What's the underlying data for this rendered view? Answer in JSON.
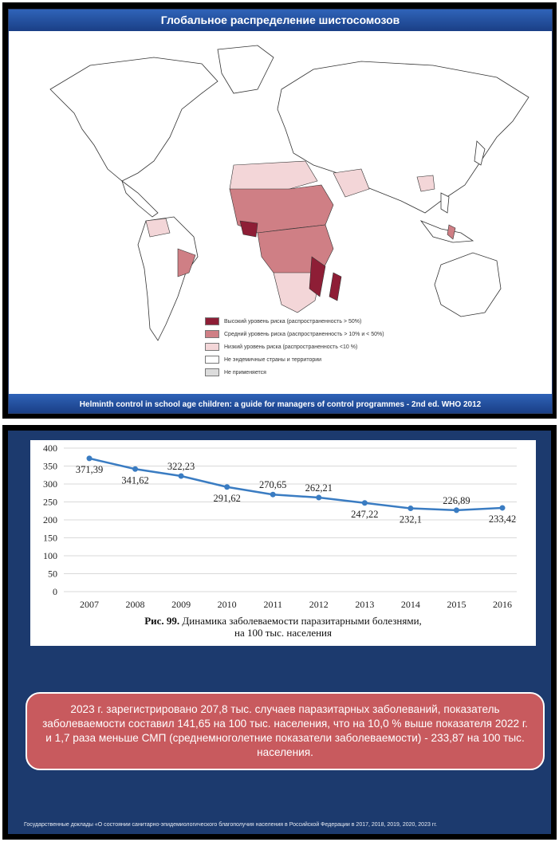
{
  "slide1": {
    "title": "Глобальное распределение шистосомозов",
    "footer": "Helminth control in school age children: a guide for managers of control programmes - 2nd ed. WHO 2012",
    "legend": [
      {
        "label": "Высокий уровень риска (распространенность > 50%)",
        "color": "#8e1e36"
      },
      {
        "label": "Средний уровень риска (распространенность > 10% и < 50%)",
        "color": "#cf7f85"
      },
      {
        "label": "Низкий уровень риска (распространенность <10 %)",
        "color": "#f3d6d8"
      },
      {
        "label": "Не эндемичные страны и территории",
        "color": "#ffffff"
      },
      {
        "label": "Не применяется",
        "color": "#dcdcdc"
      }
    ]
  },
  "chart_data": {
    "type": "line",
    "categories": [
      "2007",
      "2008",
      "2009",
      "2010",
      "2011",
      "2012",
      "2013",
      "2014",
      "2015",
      "2016"
    ],
    "values": [
      371.39,
      341.62,
      322.23,
      291.62,
      270.65,
      262.21,
      247.22,
      232.1,
      226.89,
      233.42
    ],
    "value_labels": [
      "371,39",
      "341,62",
      "322,23",
      "291,62",
      "270,65",
      "262,21",
      "247,22",
      "232,1",
      "226,89",
      "233,42"
    ],
    "y_ticks": [
      "0",
      "50",
      "100",
      "150",
      "200",
      "250",
      "300",
      "350",
      "400"
    ],
    "ylim": [
      0,
      400
    ],
    "grid": true,
    "series_color": "#3a7cc2",
    "caption_bold": "Рис. 99.",
    "caption_line1": " Динамика заболеваемости паразитарными болезнями,",
    "caption_line2": "на 100 тыс. населения"
  },
  "slide2": {
    "callout": "2023 г. зарегистрировано 207,8 тыс. случаев паразитарных заболеваний, показатель заболеваемости составил 141,65 на 100 тыс. населения, что на 10,0 % выше показателя 2022 г. и 1,7 раза меньше СМП (среднемноголетние показатели заболеваемости) - 233,87 на 100 тыс. населения.",
    "footer": "Государственные доклады «О состоянии санитарно-эпидемиологического благополучия населения в Российской Федерации в 2017, 2018, 2019, 2020, 2023 гг."
  }
}
